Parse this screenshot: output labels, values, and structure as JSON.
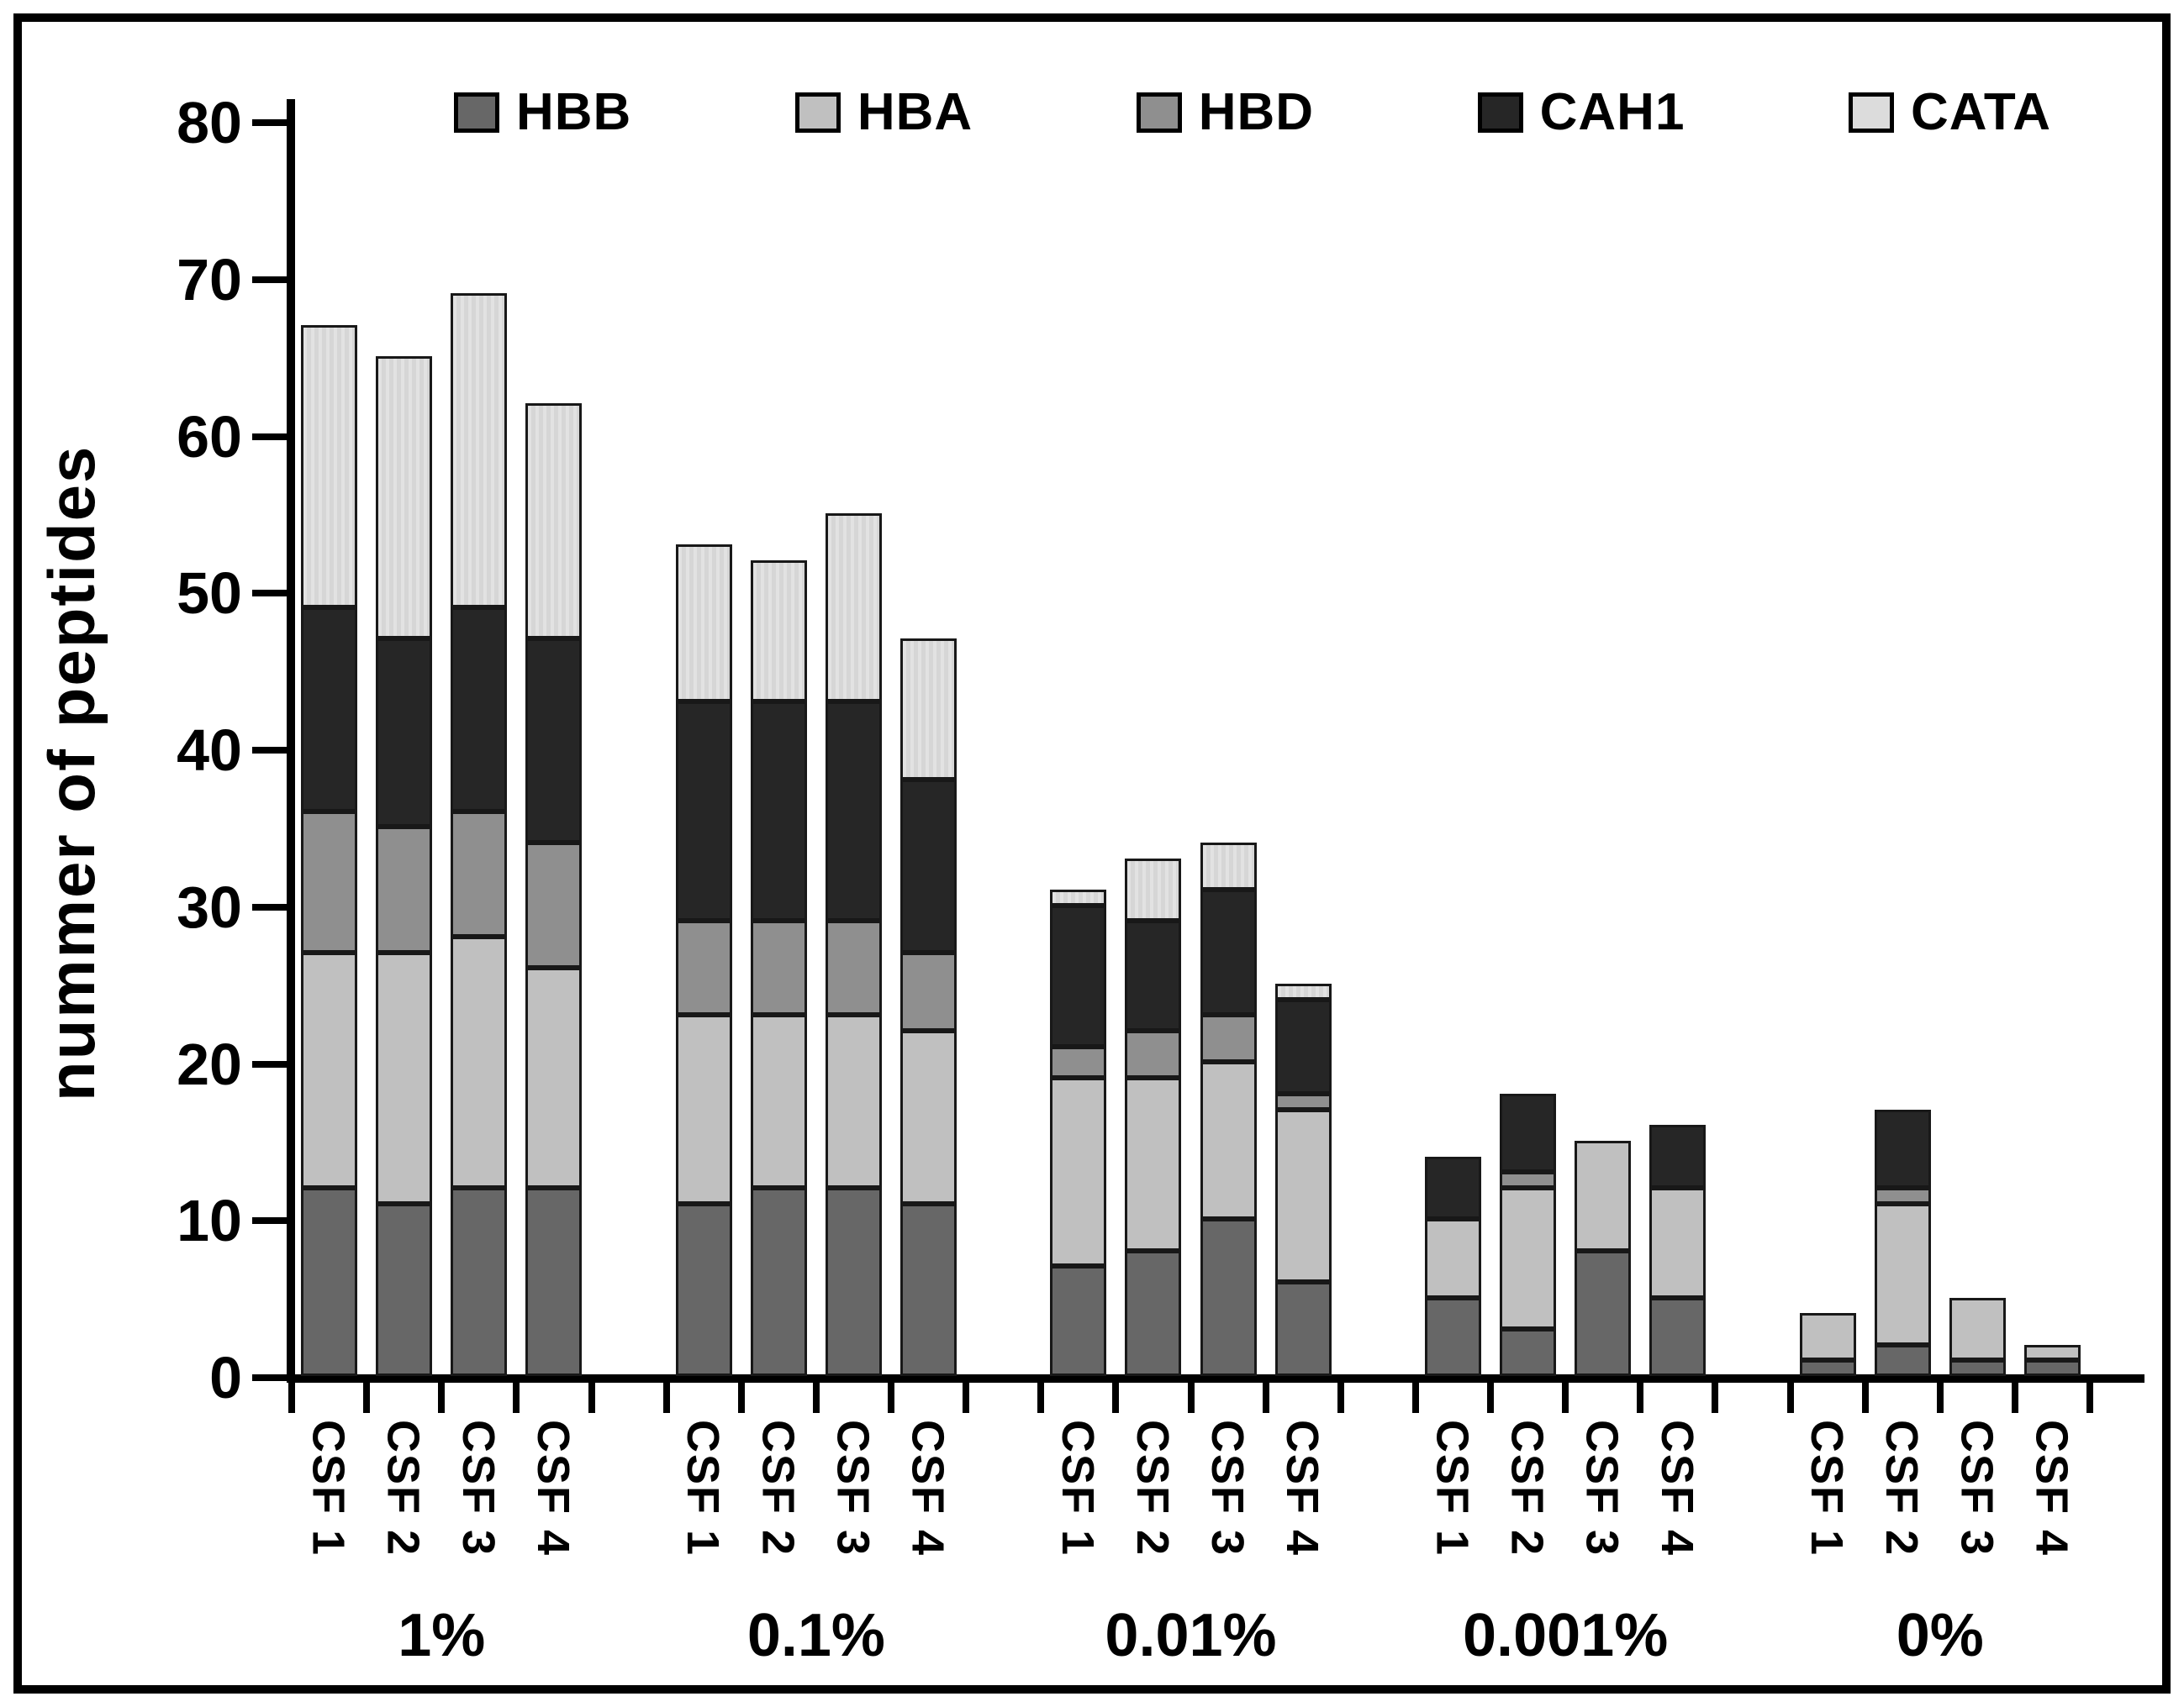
{
  "figure": {
    "background": "#ffffff",
    "border_color": "#000000"
  },
  "chart_data": {
    "type": "bar",
    "stacked": true,
    "title": "",
    "xlabel": "",
    "ylabel": "nummer of peptides",
    "ylim": [
      0,
      80
    ],
    "yticks": [
      0,
      10,
      20,
      30,
      40,
      50,
      60,
      70,
      80
    ],
    "grid": false,
    "legend_position": "top-inside",
    "groups": [
      "1%",
      "0.1%",
      "0.01%",
      "0.001%",
      "0%"
    ],
    "bar_labels": [
      "CSF 1",
      "CSF 2",
      "CSF 3",
      "CSF 4"
    ],
    "series": [
      {
        "name": "HBB",
        "color": "#676767",
        "values": [
          [
            12,
            11,
            12,
            12
          ],
          [
            11,
            12,
            12,
            11
          ],
          [
            7,
            8,
            10,
            6
          ],
          [
            5,
            3,
            8,
            5
          ],
          [
            1,
            2,
            1,
            1
          ]
        ]
      },
      {
        "name": "HBA",
        "color": "#c0c0c0",
        "values": [
          [
            15,
            16,
            16,
            14
          ],
          [
            12,
            11,
            11,
            11
          ],
          [
            12,
            11,
            10,
            11
          ],
          [
            5,
            9,
            7,
            7
          ],
          [
            3,
            9,
            4,
            1
          ]
        ]
      },
      {
        "name": "HBD",
        "color": "#8f8f8f",
        "values": [
          [
            9,
            8,
            8,
            8
          ],
          [
            6,
            6,
            6,
            5
          ],
          [
            2,
            3,
            3,
            1
          ],
          [
            0,
            1,
            0,
            0
          ],
          [
            0,
            1,
            0,
            0
          ]
        ]
      },
      {
        "name": "CAH1",
        "color": "#262626",
        "values": [
          [
            13,
            12,
            13,
            13
          ],
          [
            14,
            14,
            14,
            11
          ],
          [
            9,
            7,
            8,
            6
          ],
          [
            4,
            5,
            0,
            4
          ],
          [
            0,
            5,
            0,
            0
          ]
        ]
      },
      {
        "name": "CATA",
        "color": "#dcdcdc",
        "values": [
          [
            18,
            18,
            20,
            15
          ],
          [
            10,
            9,
            12,
            9
          ],
          [
            1,
            4,
            3,
            1
          ],
          [
            0,
            0,
            0,
            0
          ],
          [
            0,
            0,
            0,
            0
          ]
        ]
      }
    ],
    "totals": [
      [
        67,
        65,
        69,
        62
      ],
      [
        53,
        52,
        55,
        47
      ],
      [
        31,
        33,
        34,
        25
      ],
      [
        14,
        18,
        15,
        16
      ],
      [
        4,
        17,
        5,
        2
      ]
    ]
  }
}
